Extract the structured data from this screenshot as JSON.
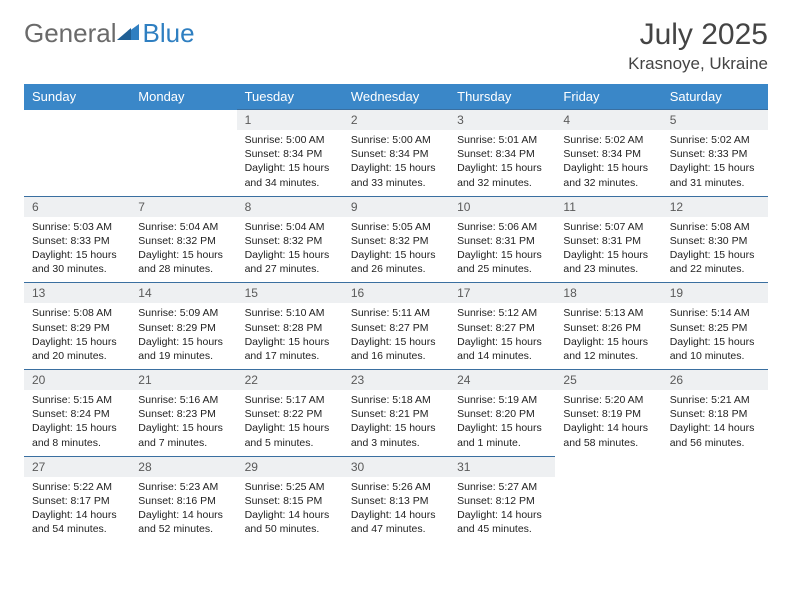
{
  "brand": {
    "part1": "General",
    "part2": "Blue"
  },
  "title": "July 2025",
  "location": "Krasnoye, Ukraine",
  "weekdays": [
    "Sunday",
    "Monday",
    "Tuesday",
    "Wednesday",
    "Thursday",
    "Friday",
    "Saturday"
  ],
  "colors": {
    "header_bg": "#3a87c8",
    "header_text": "#ffffff",
    "daynum_bg": "#eef0f2",
    "daynum_border": "#3a6fa0",
    "logo_gray": "#6a6a6a",
    "logo_blue": "#2f7fc1"
  },
  "weeks": [
    [
      null,
      null,
      {
        "n": "1",
        "sr": "Sunrise: 5:00 AM",
        "ss": "Sunset: 8:34 PM",
        "dl": "Daylight: 15 hours and 34 minutes."
      },
      {
        "n": "2",
        "sr": "Sunrise: 5:00 AM",
        "ss": "Sunset: 8:34 PM",
        "dl": "Daylight: 15 hours and 33 minutes."
      },
      {
        "n": "3",
        "sr": "Sunrise: 5:01 AM",
        "ss": "Sunset: 8:34 PM",
        "dl": "Daylight: 15 hours and 32 minutes."
      },
      {
        "n": "4",
        "sr": "Sunrise: 5:02 AM",
        "ss": "Sunset: 8:34 PM",
        "dl": "Daylight: 15 hours and 32 minutes."
      },
      {
        "n": "5",
        "sr": "Sunrise: 5:02 AM",
        "ss": "Sunset: 8:33 PM",
        "dl": "Daylight: 15 hours and 31 minutes."
      }
    ],
    [
      {
        "n": "6",
        "sr": "Sunrise: 5:03 AM",
        "ss": "Sunset: 8:33 PM",
        "dl": "Daylight: 15 hours and 30 minutes."
      },
      {
        "n": "7",
        "sr": "Sunrise: 5:04 AM",
        "ss": "Sunset: 8:32 PM",
        "dl": "Daylight: 15 hours and 28 minutes."
      },
      {
        "n": "8",
        "sr": "Sunrise: 5:04 AM",
        "ss": "Sunset: 8:32 PM",
        "dl": "Daylight: 15 hours and 27 minutes."
      },
      {
        "n": "9",
        "sr": "Sunrise: 5:05 AM",
        "ss": "Sunset: 8:32 PM",
        "dl": "Daylight: 15 hours and 26 minutes."
      },
      {
        "n": "10",
        "sr": "Sunrise: 5:06 AM",
        "ss": "Sunset: 8:31 PM",
        "dl": "Daylight: 15 hours and 25 minutes."
      },
      {
        "n": "11",
        "sr": "Sunrise: 5:07 AM",
        "ss": "Sunset: 8:31 PM",
        "dl": "Daylight: 15 hours and 23 minutes."
      },
      {
        "n": "12",
        "sr": "Sunrise: 5:08 AM",
        "ss": "Sunset: 8:30 PM",
        "dl": "Daylight: 15 hours and 22 minutes."
      }
    ],
    [
      {
        "n": "13",
        "sr": "Sunrise: 5:08 AM",
        "ss": "Sunset: 8:29 PM",
        "dl": "Daylight: 15 hours and 20 minutes."
      },
      {
        "n": "14",
        "sr": "Sunrise: 5:09 AM",
        "ss": "Sunset: 8:29 PM",
        "dl": "Daylight: 15 hours and 19 minutes."
      },
      {
        "n": "15",
        "sr": "Sunrise: 5:10 AM",
        "ss": "Sunset: 8:28 PM",
        "dl": "Daylight: 15 hours and 17 minutes."
      },
      {
        "n": "16",
        "sr": "Sunrise: 5:11 AM",
        "ss": "Sunset: 8:27 PM",
        "dl": "Daylight: 15 hours and 16 minutes."
      },
      {
        "n": "17",
        "sr": "Sunrise: 5:12 AM",
        "ss": "Sunset: 8:27 PM",
        "dl": "Daylight: 15 hours and 14 minutes."
      },
      {
        "n": "18",
        "sr": "Sunrise: 5:13 AM",
        "ss": "Sunset: 8:26 PM",
        "dl": "Daylight: 15 hours and 12 minutes."
      },
      {
        "n": "19",
        "sr": "Sunrise: 5:14 AM",
        "ss": "Sunset: 8:25 PM",
        "dl": "Daylight: 15 hours and 10 minutes."
      }
    ],
    [
      {
        "n": "20",
        "sr": "Sunrise: 5:15 AM",
        "ss": "Sunset: 8:24 PM",
        "dl": "Daylight: 15 hours and 8 minutes."
      },
      {
        "n": "21",
        "sr": "Sunrise: 5:16 AM",
        "ss": "Sunset: 8:23 PM",
        "dl": "Daylight: 15 hours and 7 minutes."
      },
      {
        "n": "22",
        "sr": "Sunrise: 5:17 AM",
        "ss": "Sunset: 8:22 PM",
        "dl": "Daylight: 15 hours and 5 minutes."
      },
      {
        "n": "23",
        "sr": "Sunrise: 5:18 AM",
        "ss": "Sunset: 8:21 PM",
        "dl": "Daylight: 15 hours and 3 minutes."
      },
      {
        "n": "24",
        "sr": "Sunrise: 5:19 AM",
        "ss": "Sunset: 8:20 PM",
        "dl": "Daylight: 15 hours and 1 minute."
      },
      {
        "n": "25",
        "sr": "Sunrise: 5:20 AM",
        "ss": "Sunset: 8:19 PM",
        "dl": "Daylight: 14 hours and 58 minutes."
      },
      {
        "n": "26",
        "sr": "Sunrise: 5:21 AM",
        "ss": "Sunset: 8:18 PM",
        "dl": "Daylight: 14 hours and 56 minutes."
      }
    ],
    [
      {
        "n": "27",
        "sr": "Sunrise: 5:22 AM",
        "ss": "Sunset: 8:17 PM",
        "dl": "Daylight: 14 hours and 54 minutes."
      },
      {
        "n": "28",
        "sr": "Sunrise: 5:23 AM",
        "ss": "Sunset: 8:16 PM",
        "dl": "Daylight: 14 hours and 52 minutes."
      },
      {
        "n": "29",
        "sr": "Sunrise: 5:25 AM",
        "ss": "Sunset: 8:15 PM",
        "dl": "Daylight: 14 hours and 50 minutes."
      },
      {
        "n": "30",
        "sr": "Sunrise: 5:26 AM",
        "ss": "Sunset: 8:13 PM",
        "dl": "Daylight: 14 hours and 47 minutes."
      },
      {
        "n": "31",
        "sr": "Sunrise: 5:27 AM",
        "ss": "Sunset: 8:12 PM",
        "dl": "Daylight: 14 hours and 45 minutes."
      },
      null,
      null
    ]
  ]
}
